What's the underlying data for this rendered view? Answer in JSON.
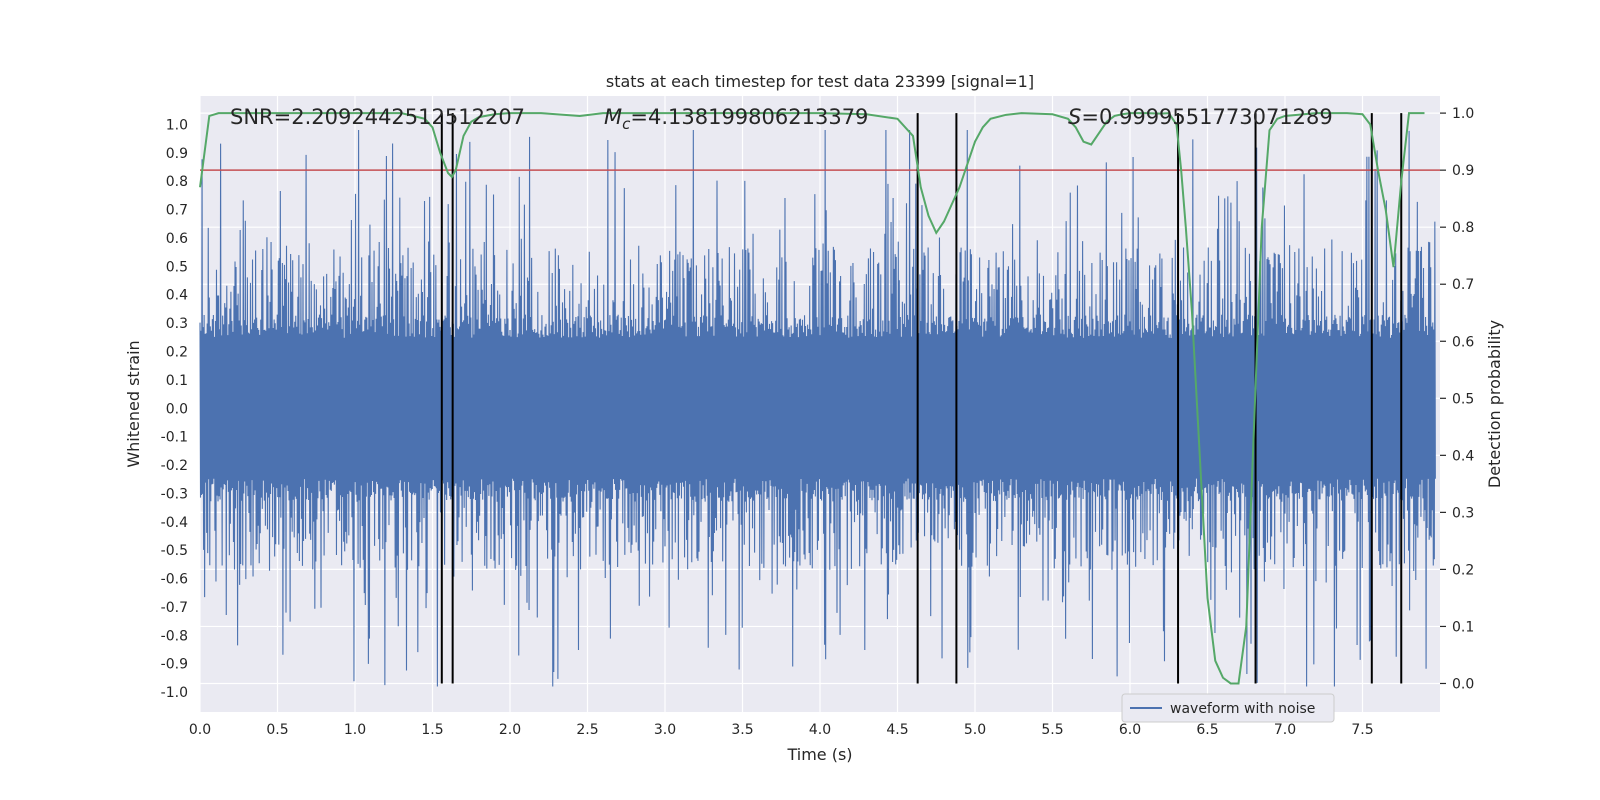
{
  "chart_data": {
    "type": "line",
    "title": "stats at each timestep for test data 23399 [signal=1]",
    "xlabel": "Time (s)",
    "ylabel_left": "Whitened strain",
    "ylabel_right": "Detection probability",
    "xlim": [
      0.0,
      8.0
    ],
    "ylim_left": [
      -1.07,
      1.1
    ],
    "ylim_right": [
      -0.05,
      1.03
    ],
    "x_ticks": [
      "0.0",
      "0.5",
      "1.0",
      "1.5",
      "2.0",
      "2.5",
      "3.0",
      "3.5",
      "4.0",
      "4.5",
      "5.0",
      "5.5",
      "6.0",
      "6.5",
      "7.0",
      "7.5"
    ],
    "y_ticks_left": [
      "1.0",
      "0.9",
      "0.8",
      "0.7",
      "0.6",
      "0.5",
      "0.4",
      "0.3",
      "0.2",
      "0.1",
      "0.0",
      "-0.1",
      "-0.2",
      "-0.3",
      "-0.4",
      "-0.5",
      "-0.6",
      "-0.7",
      "-0.8",
      "-0.9",
      "-1.0"
    ],
    "y_ticks_right": [
      "1.0",
      "0.9",
      "0.8",
      "0.7",
      "0.6",
      "0.5",
      "0.4",
      "0.3",
      "0.2",
      "0.1",
      "0.0"
    ],
    "annotations": {
      "snr": "SNR=2.2092442512512207",
      "mc_symbol": "M",
      "mc_sub": "c",
      "mc_value": "=4.138199806213379",
      "s_symbol": "S",
      "s_value": "=0.9999551773071289"
    },
    "threshold": {
      "value_right": 0.9,
      "color": "#c44e52"
    },
    "vertical_lines_x": [
      1.56,
      1.63,
      4.63,
      4.88,
      6.31,
      6.81,
      7.56,
      7.75
    ],
    "waveform": {
      "name": "waveform with noise",
      "color": "#4c72b0",
      "envelope_core": 0.33,
      "spike_max_abs": 1.0
    },
    "detection_probability": {
      "color": "#55a868",
      "x": [
        0.0,
        0.06,
        0.12,
        0.2,
        0.3,
        0.5,
        0.7,
        0.9,
        1.1,
        1.3,
        1.45,
        1.5,
        1.55,
        1.6,
        1.625,
        1.65,
        1.7,
        1.75,
        1.8,
        1.9,
        2.0,
        2.2,
        2.45,
        2.6,
        3.0,
        3.5,
        4.0,
        4.3,
        4.5,
        4.6,
        4.65,
        4.7,
        4.75,
        4.8,
        4.85,
        4.9,
        4.95,
        5.0,
        5.05,
        5.1,
        5.2,
        5.3,
        5.5,
        5.6,
        5.65,
        5.7,
        5.75,
        5.8,
        5.85,
        5.9,
        5.95,
        6.0,
        6.1,
        6.2,
        6.25,
        6.3,
        6.33,
        6.36,
        6.4,
        6.45,
        6.5,
        6.55,
        6.6,
        6.65,
        6.7,
        6.75,
        6.8,
        6.85,
        6.9,
        6.95,
        7.0,
        7.2,
        7.4,
        7.5,
        7.55,
        7.6,
        7.65,
        7.7,
        7.75,
        7.8,
        7.9
      ],
      "y": [
        0.87,
        0.995,
        1.0,
        1.0,
        1.0,
        1.0,
        1.0,
        1.0,
        1.0,
        1.0,
        0.99,
        0.975,
        0.93,
        0.895,
        0.888,
        0.9,
        0.96,
        0.985,
        0.993,
        0.998,
        1.0,
        1.0,
        0.995,
        1.0,
        1.0,
        1.0,
        1.0,
        0.998,
        0.99,
        0.96,
        0.87,
        0.82,
        0.79,
        0.81,
        0.84,
        0.87,
        0.91,
        0.95,
        0.975,
        0.99,
        0.997,
        1.0,
        0.998,
        0.99,
        0.975,
        0.95,
        0.945,
        0.965,
        0.985,
        0.995,
        0.998,
        1.0,
        1.0,
        0.999,
        1.0,
        0.98,
        0.9,
        0.8,
        0.65,
        0.4,
        0.15,
        0.04,
        0.01,
        0.0,
        0.0,
        0.1,
        0.45,
        0.8,
        0.97,
        0.99,
        0.995,
        1.0,
        1.0,
        0.998,
        0.98,
        0.9,
        0.83,
        0.73,
        0.88,
        1.0,
        1.0
      ]
    }
  }
}
